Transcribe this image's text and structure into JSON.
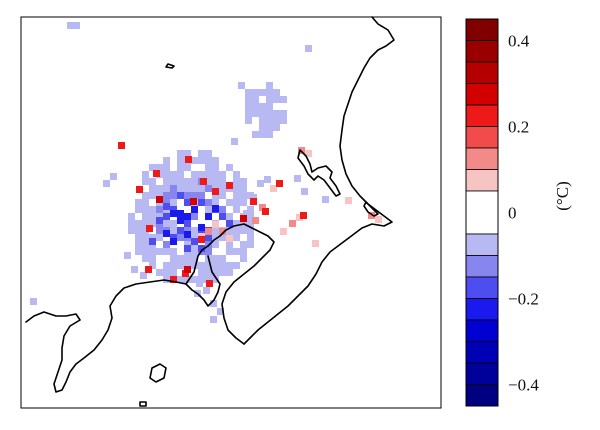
{
  "colorbar": {
    "unit": "(°C)",
    "range": [
      -0.45,
      0.45
    ],
    "tick_labels": [
      {
        "value": 0.4,
        "text": "0.4"
      },
      {
        "value": 0.2,
        "text": "0.2"
      },
      {
        "value": 0.0,
        "text": "0"
      },
      {
        "value": -0.2,
        "text": "−0.2"
      },
      {
        "value": -0.4,
        "text": "−0.4"
      }
    ],
    "color_bands": [
      {
        "from": 0.4,
        "to": 0.45,
        "color": "#800000"
      },
      {
        "from": 0.35,
        "to": 0.4,
        "color": "#9a0000"
      },
      {
        "from": 0.3,
        "to": 0.35,
        "color": "#b40000"
      },
      {
        "from": 0.25,
        "to": 0.3,
        "color": "#d20000"
      },
      {
        "from": 0.2,
        "to": 0.25,
        "color": "#ee1a1a"
      },
      {
        "from": 0.15,
        "to": 0.2,
        "color": "#f24b4b"
      },
      {
        "from": 0.1,
        "to": 0.15,
        "color": "#f38a8a"
      },
      {
        "from": 0.05,
        "to": 0.1,
        "color": "#f7c4c4"
      },
      {
        "from": -0.05,
        "to": 0.05,
        "color": "#ffffff"
      },
      {
        "from": -0.1,
        "to": -0.05,
        "color": "#b8b8f2"
      },
      {
        "from": -0.15,
        "to": -0.1,
        "color": "#8686ee"
      },
      {
        "from": -0.2,
        "to": -0.15,
        "color": "#4d4df0"
      },
      {
        "from": -0.25,
        "to": -0.2,
        "color": "#1a1aee"
      },
      {
        "from": -0.3,
        "to": -0.25,
        "color": "#0000d2"
      },
      {
        "from": -0.35,
        "to": -0.3,
        "color": "#0000b4"
      },
      {
        "from": -0.4,
        "to": -0.35,
        "color": "#00009a"
      },
      {
        "from": -0.45,
        "to": -0.4,
        "color": "#000080"
      }
    ]
  },
  "map": {
    "background": "#ffffff",
    "coastline_color": "#000000"
  }
}
